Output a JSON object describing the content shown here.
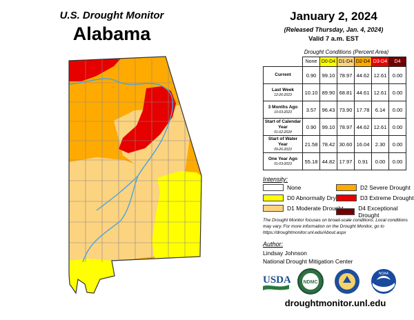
{
  "header": {
    "product": "U.S. Drought Monitor",
    "state": "Alabama",
    "date": "January 2, 2024",
    "released": "(Released Thursday, Jan. 4, 2024)",
    "valid": "Valid 7 a.m. EST"
  },
  "table": {
    "caption": "Drought Conditions (Percent Area)",
    "columns": [
      "None",
      "D0-D4",
      "D1-D4",
      "D2-D4",
      "D3-D4",
      "D4"
    ],
    "column_colors": [
      "#ffffff",
      "#ffff00",
      "#fcd37f",
      "#ffaa00",
      "#e60000",
      "#730000"
    ],
    "rows": [
      {
        "label": "Current",
        "date": "",
        "values": [
          "0.90",
          "99.10",
          "78.97",
          "44.62",
          "12.61",
          "0.00"
        ]
      },
      {
        "label": "Last Week",
        "date": "12-26-2023",
        "values": [
          "10.10",
          "89.90",
          "68.81",
          "44.61",
          "12.61",
          "0.00"
        ]
      },
      {
        "label": "3 Months Ago",
        "date": "10-03-2023",
        "values": [
          "3.57",
          "96.43",
          "73.90",
          "17.78",
          "6.14",
          "0.00"
        ]
      },
      {
        "label": "Start of Calendar Year",
        "date": "01-02-2024",
        "values": [
          "0.90",
          "99.10",
          "78.97",
          "44.62",
          "12.61",
          "0.00"
        ]
      },
      {
        "label": "Start of Water Year",
        "date": "09-26-2023",
        "values": [
          "21.58",
          "78.42",
          "30.60",
          "16.04",
          "2.30",
          "0.00"
        ]
      },
      {
        "label": "One Year Ago",
        "date": "01-03-2023",
        "values": [
          "55.18",
          "44.82",
          "17.97",
          "0.91",
          "0.00",
          "0.00"
        ]
      }
    ]
  },
  "legend": {
    "title": "Intensity:",
    "items": [
      {
        "label": "None",
        "color": "#ffffff"
      },
      {
        "label": "D2 Severe Drought",
        "color": "#ffaa00"
      },
      {
        "label": "D0 Abnormally Dry",
        "color": "#ffff00"
      },
      {
        "label": "D3 Extreme Drought",
        "color": "#e60000"
      },
      {
        "label": "D1 Moderate Drought",
        "color": "#fcd37f"
      },
      {
        "label": "D4 Exceptional Drought",
        "color": "#730000"
      }
    ]
  },
  "note": "The Drought Monitor focuses on broad-scale conditions. Local conditions may vary. For more information on the Drought Monitor, go to https://droughtmonitor.unl.edu/About.aspx",
  "author": {
    "label": "Author:",
    "name": "Lindsay Johnson",
    "org": "National Drought Mitigation Center"
  },
  "logos": {
    "usda": "USDA",
    "ndmc": "NDMC",
    "noaa": "NOAA"
  },
  "website": "droughtmonitor.unl.edu",
  "map_colors": {
    "river": "#4aa3df",
    "county_line": "#8a8a8a"
  }
}
